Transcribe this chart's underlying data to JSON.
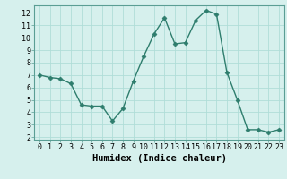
{
  "x": [
    0,
    1,
    2,
    3,
    4,
    5,
    6,
    7,
    8,
    9,
    10,
    11,
    12,
    13,
    14,
    15,
    16,
    17,
    18,
    19,
    20,
    21,
    22,
    23
  ],
  "y": [
    7.0,
    6.8,
    6.7,
    6.3,
    4.6,
    4.5,
    4.5,
    3.3,
    4.3,
    6.5,
    8.5,
    10.3,
    11.6,
    9.5,
    9.6,
    11.4,
    12.2,
    11.9,
    7.2,
    5.0,
    2.6,
    2.6,
    2.4,
    2.6
  ],
  "line_color": "#2e7d6d",
  "marker": "D",
  "marker_size": 2.5,
  "bg_color": "#d6f0ed",
  "grid_color": "#b0ddd8",
  "xlabel": "Humidex (Indice chaleur)",
  "xlabel_fontsize": 7.5,
  "xlim": [
    -0.5,
    23.5
  ],
  "ylim": [
    1.8,
    12.6
  ],
  "yticks": [
    2,
    3,
    4,
    5,
    6,
    7,
    8,
    9,
    10,
    11,
    12
  ],
  "xticks": [
    0,
    1,
    2,
    3,
    4,
    5,
    6,
    7,
    8,
    9,
    10,
    11,
    12,
    13,
    14,
    15,
    16,
    17,
    18,
    19,
    20,
    21,
    22,
    23
  ],
  "tick_fontsize": 6,
  "linewidth": 1.0
}
